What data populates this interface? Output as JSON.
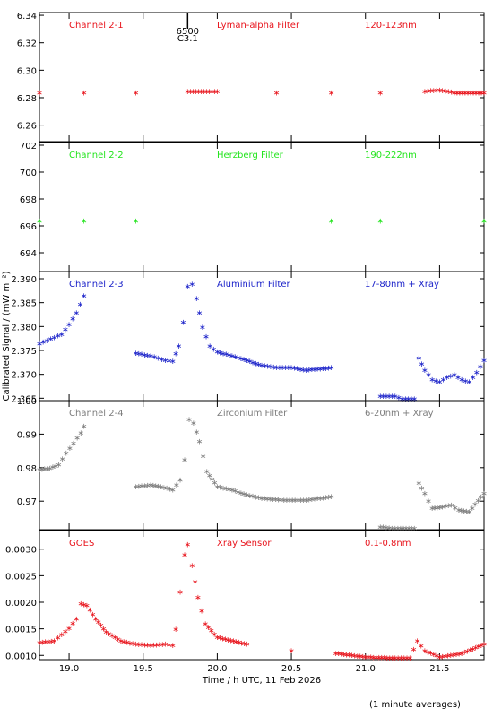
{
  "chart_data": [
    {
      "type": "scatter",
      "panel": "Channel 2-1",
      "color": "#e8141c",
      "labels": [
        "Channel 2-1",
        "Lyman-alpha Filter",
        "120-123nm"
      ],
      "ylim": [
        6.248,
        6.342
      ],
      "yticks": [
        "6.26",
        "6.28",
        "6.30",
        "6.32",
        "6.34"
      ],
      "ytick_values": [
        6.26,
        6.28,
        6.3,
        6.32,
        6.34
      ],
      "series": [
        {
          "points": [
            [
              18.8,
              6.284
            ],
            [
              19.1,
              6.284
            ],
            [
              19.45,
              6.284
            ],
            [
              19.8,
              6.285
            ],
            [
              20.0,
              6.285
            ],
            [
              20.4,
              6.284
            ],
            [
              20.77,
              6.284
            ],
            [
              21.1,
              6.284
            ],
            [
              21.4,
              6.285
            ],
            [
              21.5,
              6.286
            ],
            [
              21.6,
              6.284
            ],
            [
              21.8,
              6.284
            ]
          ]
        }
      ]
    },
    {
      "type": "scatter",
      "panel": "Channel 2-2",
      "color": "#22e41c",
      "labels": [
        "Channel 2-2",
        "Herzberg Filter",
        "190-222nm"
      ],
      "ylim": [
        692.6,
        702.2
      ],
      "yticks": [
        "694",
        "696",
        "698",
        "700",
        "702"
      ],
      "ytick_values": [
        694,
        696,
        698,
        700,
        702
      ],
      "series": [
        {
          "points": [
            [
              18.8,
              696.4
            ],
            [
              19.1,
              696.4
            ],
            [
              19.45,
              696.4
            ],
            [
              20.77,
              696.4
            ],
            [
              21.1,
              696.4
            ],
            [
              21.8,
              696.4
            ]
          ]
        }
      ]
    },
    {
      "type": "scatter",
      "panel": "Channel 2-3",
      "color": "#1b22c9",
      "labels": [
        "Channel 2-3",
        "Aluminium Filter",
        "17-80nm + Xray"
      ],
      "ylim": [
        2.3645,
        2.3915
      ],
      "yticks": [
        "2.365",
        "2.370",
        "2.375",
        "2.380",
        "2.385",
        "2.390"
      ],
      "ytick_values": [
        2.365,
        2.37,
        2.375,
        2.38,
        2.385,
        2.39
      ],
      "series": [
        {
          "points": [
            [
              18.8,
              2.3765
            ],
            [
              18.85,
              2.3772
            ],
            [
              18.9,
              2.3778
            ],
            [
              18.95,
              2.3785
            ],
            [
              19.0,
              2.3805
            ],
            [
              19.05,
              2.383
            ],
            [
              19.1,
              2.3865
            ],
            [
              19.45,
              2.3745
            ],
            [
              19.55,
              2.374
            ],
            [
              19.6,
              2.3735
            ],
            [
              19.65,
              2.373
            ],
            [
              19.7,
              2.3728
            ],
            [
              19.74,
              2.376
            ],
            [
              19.77,
              2.381
            ],
            [
              19.8,
              2.3885
            ],
            [
              19.83,
              2.389
            ],
            [
              19.86,
              2.386
            ],
            [
              19.9,
              2.38
            ],
            [
              19.95,
              2.376
            ],
            [
              20.0,
              2.3748
            ],
            [
              20.1,
              2.374
            ],
            [
              20.2,
              2.373
            ],
            [
              20.3,
              2.372
            ],
            [
              20.4,
              2.3715
            ],
            [
              20.5,
              2.3715
            ],
            [
              20.6,
              2.371
            ],
            [
              20.77,
              2.3715
            ],
            [
              21.1,
              2.3655
            ],
            [
              21.2,
              2.3655
            ],
            [
              21.25,
              2.365
            ],
            [
              21.33,
              2.365
            ],
            [
              21.36,
              2.3735
            ],
            [
              21.4,
              2.371
            ],
            [
              21.45,
              2.369
            ],
            [
              21.5,
              2.3685
            ],
            [
              21.55,
              2.3695
            ],
            [
              21.6,
              2.37
            ],
            [
              21.65,
              2.369
            ],
            [
              21.7,
              2.3685
            ],
            [
              21.75,
              2.3705
            ],
            [
              21.8,
              2.373
            ]
          ]
        }
      ]
    },
    {
      "type": "scatter",
      "panel": "Channel 2-4",
      "color": "#7d7d7d",
      "labels": [
        "Channel 2-4",
        "Zirconium Filter",
        "6-20nm + Xray"
      ],
      "ylim": [
        0.9615,
        1.0
      ],
      "yticks": [
        "0.97",
        "0.98",
        "0.99",
        "1.00"
      ],
      "ytick_values": [
        0.97,
        0.98,
        0.99,
        1.0
      ],
      "series": [
        {
          "points": [
            [
              18.8,
              0.9795
            ],
            [
              18.87,
              0.98
            ],
            [
              18.93,
              0.981
            ],
            [
              18.98,
              0.9845
            ],
            [
              19.03,
              0.9875
            ],
            [
              19.08,
              0.9905
            ],
            [
              19.1,
              0.9925
            ],
            [
              19.45,
              0.9745
            ],
            [
              19.55,
              0.975
            ],
            [
              19.62,
              0.9745
            ],
            [
              19.7,
              0.9735
            ],
            [
              19.75,
              0.9765
            ],
            [
              19.78,
              0.9825
            ],
            [
              19.81,
              0.9945
            ],
            [
              19.84,
              0.9935
            ],
            [
              19.88,
              0.988
            ],
            [
              19.93,
              0.979
            ],
            [
              20.0,
              0.9745
            ],
            [
              20.1,
              0.9735
            ],
            [
              20.2,
              0.972
            ],
            [
              20.3,
              0.971
            ],
            [
              20.45,
              0.9705
            ],
            [
              20.6,
              0.9705
            ],
            [
              20.77,
              0.9715
            ],
            [
              21.1,
              0.9625
            ],
            [
              21.2,
              0.962
            ],
            [
              21.33,
              0.962
            ],
            [
              21.36,
              0.9755
            ],
            [
              21.4,
              0.9725
            ],
            [
              21.45,
              0.968
            ],
            [
              21.52,
              0.9685
            ],
            [
              21.58,
              0.969
            ],
            [
              21.63,
              0.9675
            ],
            [
              21.7,
              0.967
            ],
            [
              21.8,
              0.9725
            ]
          ]
        }
      ]
    },
    {
      "type": "scatter",
      "panel": "GOES",
      "color": "#e8141c",
      "labels": [
        "GOES",
        "Xray Sensor",
        "0.1-0.8nm"
      ],
      "ylim": [
        0.00092,
        0.00335
      ],
      "yticks": [
        "0.0010",
        "0.0015",
        "0.0020",
        "0.0025",
        "0.0030"
      ],
      "ytick_values": [
        0.001,
        0.0015,
        0.002,
        0.0025,
        0.003
      ],
      "series": [
        {
          "points": [
            [
              18.8,
              0.00125
            ],
            [
              18.9,
              0.00128
            ],
            [
              18.95,
              0.0014
            ],
            [
              19.0,
              0.00152
            ],
            [
              19.05,
              0.0017
            ],
            [
              19.08,
              0.00198
            ],
            [
              19.12,
              0.00195
            ],
            [
              19.18,
              0.0017
            ],
            [
              19.25,
              0.00145
            ],
            [
              19.35,
              0.00128
            ],
            [
              19.45,
              0.00122
            ],
            [
              19.55,
              0.0012
            ],
            [
              19.65,
              0.00122
            ],
            [
              19.7,
              0.0012
            ],
            [
              19.72,
              0.0015
            ],
            [
              19.75,
              0.0022
            ],
            [
              19.78,
              0.0029
            ],
            [
              19.8,
              0.0031
            ],
            [
              19.83,
              0.0027
            ],
            [
              19.87,
              0.0021
            ],
            [
              19.92,
              0.0016
            ],
            [
              20.0,
              0.00135
            ],
            [
              20.2,
              0.00122
            ],
            [
              20.5,
              0.0011
            ],
            [
              20.8,
              0.00105
            ],
            [
              21.0,
              0.00098
            ],
            [
              21.2,
              0.00096
            ],
            [
              21.3,
              0.00096
            ],
            [
              21.35,
              0.00128
            ],
            [
              21.4,
              0.0011
            ],
            [
              21.5,
              0.00098
            ],
            [
              21.65,
              0.00105
            ],
            [
              21.8,
              0.00122
            ]
          ]
        }
      ]
    }
  ],
  "x_axis": {
    "xlim": [
      18.8,
      21.8
    ],
    "ticks": [
      "19.0",
      "19.5",
      "20.0",
      "20.5",
      "21.0",
      "21.5"
    ],
    "tick_values": [
      19.0,
      19.5,
      20.0,
      20.5,
      21.0,
      21.5
    ],
    "label": "Time / h UTC, 11 Feb 2026"
  },
  "y_axis_label": "Calibrated Signal / (mW m⁻²)",
  "annotation": {
    "time": 19.8,
    "line1": "6500",
    "line2": "C3.1"
  },
  "footer": "(1 minute averages)"
}
